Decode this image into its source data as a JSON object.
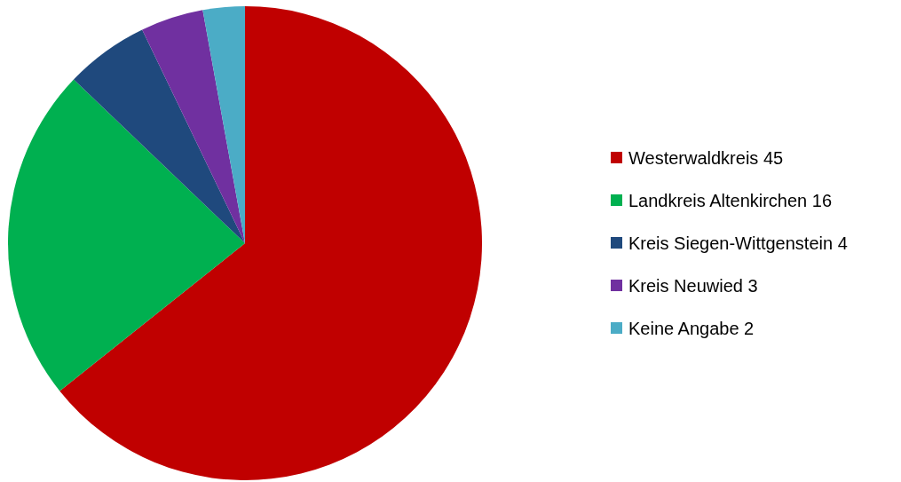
{
  "chart_data": {
    "type": "pie",
    "categories": [
      "Westerwaldkreis 45",
      "Landkreis Altenkirchen 16",
      "Kreis Siegen-Wittgenstein 4",
      "Kreis Neuwied 3",
      "Keine Angabe 2"
    ],
    "values": [
      45,
      16,
      4,
      3,
      2
    ],
    "colors": [
      "#c00000",
      "#00b050",
      "#1f497d",
      "#7030a0",
      "#4bacc6"
    ],
    "legend": "right"
  }
}
